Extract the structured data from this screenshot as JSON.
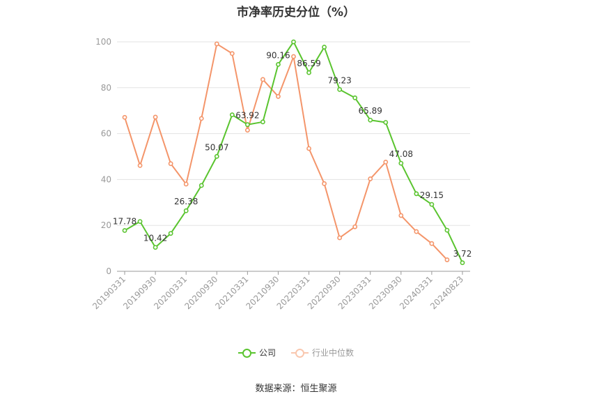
{
  "chart_data": {
    "type": "line",
    "title": "市净率历史分位（%）",
    "source": "数据来源：恒生聚源",
    "x": [
      "20190331",
      "20190630",
      "20190930",
      "20191231",
      "20200331",
      "20200630",
      "20200930",
      "20201231",
      "20210331",
      "20210630",
      "20210930",
      "20211231",
      "20220331",
      "20220630",
      "20220930",
      "20221231",
      "20230331",
      "20230630",
      "20230930",
      "20231231",
      "20240331",
      "20240630",
      "20240823"
    ],
    "x_tick_labels": [
      "20190331",
      "20190930",
      "20200331",
      "20200930",
      "20210331",
      "20210930",
      "20220331",
      "20220930",
      "20230331",
      "20230930",
      "20240331",
      "20240823"
    ],
    "ylim": [
      0,
      100
    ],
    "y_ticks": [
      0,
      20,
      40,
      60,
      80,
      100
    ],
    "grid": true,
    "legend_position": "bottom",
    "series": [
      {
        "name": "公司",
        "color": "#5ac42f",
        "values": [
          17.78,
          21.7,
          10.42,
          16.5,
          26.38,
          37.4,
          50.07,
          68.2,
          63.92,
          65.1,
          90.16,
          100.0,
          86.59,
          97.7,
          79.23,
          75.6,
          65.89,
          64.9,
          47.08,
          33.8,
          29.15,
          17.9,
          3.72
        ],
        "labels": [
          "17.78",
          "",
          "10.42",
          "",
          "26.38",
          "",
          "50.07",
          "",
          "63.92",
          "",
          "90.16",
          "",
          "86.59",
          "",
          "79.23",
          "",
          "65.89",
          "",
          "47.08",
          "",
          "29.15",
          "",
          "3.72"
        ]
      },
      {
        "name": "行业中位数",
        "color": "#f4956a",
        "values": [
          67.1,
          46.1,
          67.2,
          46.9,
          38.0,
          66.6,
          99.1,
          94.9,
          61.5,
          83.6,
          76.2,
          93.6,
          53.5,
          38.2,
          14.6,
          19.4,
          40.3,
          47.6,
          24.3,
          17.3,
          12.1,
          5.0,
          null
        ]
      }
    ]
  }
}
